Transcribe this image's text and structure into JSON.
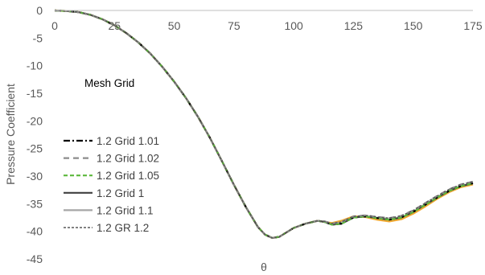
{
  "chart_data": {
    "type": "line",
    "xlabel": "θ",
    "ylabel": "Pressure Coefficient",
    "xlim": [
      0,
      175
    ],
    "ylim": [
      -45,
      0
    ],
    "xticks": [
      0,
      25,
      50,
      75,
      100,
      125,
      150,
      175
    ],
    "yticks": [
      0,
      -5,
      -10,
      -15,
      -20,
      -25,
      -30,
      -35,
      -40,
      -45
    ],
    "annotation": "Mesh Grid",
    "grid": false,
    "legend_position": "left",
    "x": [
      0,
      5,
      10,
      15,
      20,
      25,
      30,
      35,
      40,
      45,
      50,
      55,
      60,
      65,
      70,
      75,
      80,
      85,
      88,
      91,
      94,
      97,
      100,
      105,
      110,
      113,
      116,
      120,
      125,
      130,
      135,
      140,
      145,
      150,
      155,
      160,
      165,
      170,
      175
    ],
    "series": [
      {
        "name": "1.2 Grid 1.01",
        "color": "#000000",
        "dash": "8,3,2,3",
        "width": 2.2,
        "values": [
          0,
          -0.1,
          -0.3,
          -0.8,
          -1.6,
          -2.7,
          -4.1,
          -5.8,
          -7.8,
          -10.2,
          -12.9,
          -15.9,
          -19.3,
          -23.1,
          -27.3,
          -31.6,
          -35.6,
          -39.2,
          -40.6,
          -41.2,
          -41.0,
          -40.2,
          -39.4,
          -38.6,
          -38.1,
          -38.3,
          -38.8,
          -38.6,
          -37.5,
          -37.3,
          -37.6,
          -37.9,
          -37.5,
          -36.5,
          -35.2,
          -33.9,
          -32.7,
          -31.8,
          -31.3
        ]
      },
      {
        "name": "1.2 Grid 1.02",
        "color": "#8c8c8c",
        "dash": "7,5",
        "width": 2.2,
        "values": [
          0,
          -0.1,
          -0.3,
          -0.8,
          -1.6,
          -2.7,
          -4.1,
          -5.8,
          -7.8,
          -10.2,
          -12.9,
          -15.9,
          -19.3,
          -23.1,
          -27.3,
          -31.6,
          -35.6,
          -39.2,
          -40.6,
          -41.2,
          -41.0,
          -40.2,
          -39.4,
          -38.6,
          -38.1,
          -38.2,
          -38.6,
          -38.3,
          -37.3,
          -37.1,
          -37.4,
          -37.6,
          -37.2,
          -36.2,
          -34.9,
          -33.6,
          -32.4,
          -31.5,
          -31.0
        ]
      },
      {
        "name": "1.2 Grid 1.05",
        "color": "#5cb83c",
        "dash": "5,3",
        "width": 2.2,
        "values": [
          0,
          -0.1,
          -0.3,
          -0.8,
          -1.6,
          -2.7,
          -4.1,
          -5.8,
          -7.8,
          -10.2,
          -12.9,
          -15.9,
          -19.3,
          -23.1,
          -27.3,
          -31.6,
          -35.6,
          -39.2,
          -40.6,
          -41.2,
          -41.0,
          -40.2,
          -39.4,
          -38.6,
          -38.1,
          -38.3,
          -38.8,
          -38.6,
          -37.5,
          -37.3,
          -37.6,
          -37.9,
          -37.5,
          -36.5,
          -35.2,
          -33.9,
          -32.7,
          -31.8,
          -31.3
        ]
      },
      {
        "name": "1.2 Grid 1",
        "color": "#404040",
        "dash": "",
        "width": 2.2,
        "values": [
          0,
          -0.1,
          -0.3,
          -0.8,
          -1.6,
          -2.7,
          -4.1,
          -5.8,
          -7.8,
          -10.2,
          -12.9,
          -15.9,
          -19.3,
          -23.1,
          -27.3,
          -31.6,
          -35.6,
          -39.2,
          -40.6,
          -41.2,
          -41.0,
          -40.2,
          -39.4,
          -38.6,
          -38.1,
          -38.3,
          -38.8,
          -38.6,
          -37.5,
          -37.3,
          -37.6,
          -37.9,
          -37.5,
          -36.5,
          -35.2,
          -33.9,
          -32.7,
          -31.8,
          -31.3
        ]
      },
      {
        "name": "1.2 Grid 1.1",
        "color": "#a6a6a6",
        "dash": "",
        "width": 2.2,
        "values": [
          0,
          -0.1,
          -0.3,
          -0.8,
          -1.6,
          -2.7,
          -4.1,
          -5.8,
          -7.8,
          -10.2,
          -12.9,
          -15.9,
          -19.3,
          -23.1,
          -27.3,
          -31.6,
          -35.6,
          -39.2,
          -40.6,
          -41.2,
          -41.0,
          -40.2,
          -39.4,
          -38.6,
          -38.1,
          -38.3,
          -38.8,
          -38.6,
          -37.5,
          -37.3,
          -37.6,
          -37.9,
          -37.5,
          -36.5,
          -35.2,
          -33.9,
          -32.7,
          -31.8,
          -31.3
        ]
      },
      {
        "name": "1.2 GR 1.2",
        "color": "#595959",
        "dash": "3,2",
        "width": 1.4,
        "values": [
          0,
          -0.1,
          -0.3,
          -0.8,
          -1.6,
          -2.7,
          -4.1,
          -5.8,
          -7.8,
          -10.2,
          -12.9,
          -15.9,
          -19.3,
          -23.1,
          -27.3,
          -31.6,
          -35.6,
          -39.2,
          -40.6,
          -41.2,
          -41.0,
          -40.2,
          -39.4,
          -38.6,
          -38.1,
          -38.2,
          -38.6,
          -38.3,
          -37.3,
          -37.1,
          -37.4,
          -37.6,
          -37.2,
          -36.2,
          -34.9,
          -33.6,
          -32.4,
          -31.5,
          -31.0
        ]
      },
      {
        "name": "",
        "color": "#f0a830",
        "dash": "",
        "width": 2.4,
        "values": [
          0,
          -0.1,
          -0.3,
          -0.8,
          -1.6,
          -2.7,
          -4.1,
          -5.8,
          -7.8,
          -10.2,
          -12.9,
          -15.9,
          -19.3,
          -23.1,
          -27.3,
          -31.6,
          -35.6,
          -39.2,
          -40.6,
          -41.2,
          -41.0,
          -40.2,
          -39.4,
          -38.6,
          -38.1,
          -38.3,
          -38.5,
          -38.1,
          -37.3,
          -37.4,
          -37.9,
          -38.2,
          -37.8,
          -36.8,
          -35.5,
          -34.1,
          -32.9,
          -32.0,
          -31.5
        ]
      }
    ]
  }
}
